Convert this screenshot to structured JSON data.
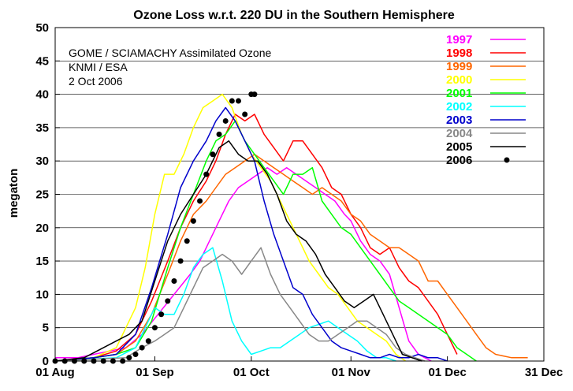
{
  "chart_data": {
    "type": "line",
    "title": "Ozone Loss w.r.t. 220 DU in the Southern Hemisphere",
    "ylabel": "megaton",
    "xlabel": "",
    "annotations": [
      "GOME / SCIAMACHY Assimilated Ozone",
      "KNMI / ESA",
      "2 Oct 2006"
    ],
    "x_unit": "day of year",
    "xlim": [
      213,
      365
    ],
    "ylim": [
      0,
      50
    ],
    "x_ticks": [
      {
        "value": 213,
        "label": "01 Aug"
      },
      {
        "value": 244,
        "label": "01 Sep"
      },
      {
        "value": 274,
        "label": "01 Oct"
      },
      {
        "value": 305,
        "label": "01 Nov"
      },
      {
        "value": 335,
        "label": "01 Dec"
      },
      {
        "value": 365,
        "label": "31 Dec"
      }
    ],
    "y_ticks": [
      0,
      5,
      10,
      15,
      20,
      25,
      30,
      35,
      40,
      45,
      50
    ],
    "grid": true,
    "legend_position": "top-right",
    "series": [
      {
        "name": "1997",
        "color": "#ff00ff",
        "style": "line",
        "x": [
          213,
          220,
          225,
          230,
          235,
          240,
          245,
          250,
          255,
          258,
          261,
          264,
          267,
          270,
          273,
          276,
          279,
          282,
          285,
          288,
          291,
          294,
          297,
          300,
          303,
          305,
          308,
          311,
          314,
          317,
          320,
          323,
          326,
          328,
          330
        ],
        "y": [
          0.5,
          0.5,
          1,
          1.5,
          2,
          4,
          7,
          10,
          13,
          15,
          18,
          21,
          24,
          26,
          27,
          28,
          29,
          28,
          29,
          28,
          27,
          26,
          25,
          24,
          22,
          21,
          18,
          16,
          15,
          13,
          8,
          3,
          1,
          0.5,
          0
        ]
      },
      {
        "name": "1998",
        "color": "#ff0000",
        "style": "line",
        "x": [
          213,
          225,
          232,
          238,
          243,
          248,
          252,
          256,
          260,
          263,
          266,
          269,
          272,
          275,
          278,
          281,
          284,
          287,
          290,
          293,
          296,
          299,
          302,
          305,
          308,
          311,
          314,
          317,
          320,
          323,
          326,
          329,
          332,
          335,
          338
        ],
        "y": [
          0,
          0.5,
          1.5,
          4,
          9,
          15,
          20,
          24,
          27,
          30,
          34,
          37,
          36,
          37,
          34,
          32,
          30,
          33,
          33,
          31,
          29,
          26,
          25,
          22,
          20,
          17,
          16,
          17,
          14,
          12,
          11,
          9,
          7,
          4,
          1
        ]
      },
      {
        "name": "1999",
        "color": "#ff6600",
        "style": "line",
        "x": [
          213,
          225,
          232,
          238,
          243,
          248,
          252,
          256,
          260,
          263,
          266,
          269,
          272,
          275,
          278,
          281,
          284,
          287,
          290,
          293,
          296,
          299,
          302,
          305,
          308,
          311,
          314,
          317,
          320,
          323,
          326,
          329,
          332,
          335,
          338,
          341,
          344,
          347,
          350,
          355,
          360
        ],
        "y": [
          0,
          0.5,
          1,
          3,
          7,
          13,
          18,
          22,
          24,
          26,
          28,
          29,
          30,
          31,
          30,
          29,
          28,
          27,
          26,
          25,
          26,
          25,
          24,
          22,
          21,
          19,
          18,
          17,
          17,
          16,
          15,
          12,
          12,
          10,
          8,
          6,
          4,
          2,
          1,
          0.5,
          0.5
        ]
      },
      {
        "name": "2000",
        "color": "#ffff00",
        "style": "line",
        "x": [
          213,
          225,
          232,
          238,
          241,
          244,
          247,
          250,
          253,
          256,
          259,
          262,
          265,
          268,
          271,
          274,
          277,
          280,
          283,
          286,
          289,
          292,
          295,
          298,
          301,
          304,
          307,
          310,
          313,
          316,
          319,
          322
        ],
        "y": [
          0,
          0.5,
          2,
          8,
          14,
          22,
          28,
          28,
          31,
          35,
          38,
          39,
          40,
          38,
          34,
          31,
          29,
          27,
          24,
          21,
          18,
          15,
          13,
          11,
          10,
          8,
          6,
          5,
          4,
          3,
          1,
          0
        ]
      },
      {
        "name": "2001",
        "color": "#00ff00",
        "style": "line",
        "x": [
          213,
          225,
          232,
          238,
          243,
          248,
          252,
          256,
          260,
          263,
          266,
          269,
          272,
          275,
          278,
          281,
          284,
          287,
          290,
          293,
          296,
          299,
          302,
          305,
          308,
          311,
          314,
          317,
          320,
          323,
          326,
          329,
          332,
          335,
          338,
          341,
          344
        ],
        "y": [
          0,
          0.5,
          1,
          2,
          6,
          14,
          20,
          25,
          30,
          33,
          34,
          36,
          33,
          31,
          29,
          27,
          25,
          28,
          28,
          29,
          24,
          22,
          20,
          19,
          17,
          15,
          13,
          11,
          9,
          8,
          7,
          6,
          5,
          4,
          2,
          1,
          0
        ]
      },
      {
        "name": "2002",
        "color": "#00ffff",
        "style": "line",
        "x": [
          213,
          232,
          238,
          242,
          244,
          247,
          250,
          253,
          256,
          259,
          262,
          265,
          268,
          271,
          274,
          277,
          280,
          283,
          286,
          289,
          292,
          295,
          298,
          301,
          304,
          307,
          310,
          313,
          316,
          319
        ],
        "y": [
          0,
          0.5,
          2,
          6,
          8,
          7,
          7,
          10,
          14,
          16,
          17,
          12,
          6,
          3,
          1,
          1.5,
          2,
          2,
          3,
          4,
          5,
          5.5,
          6,
          5,
          4,
          3,
          1.5,
          0.5,
          0.5,
          0
        ]
      },
      {
        "name": "2003",
        "color": "#0000cc",
        "style": "line",
        "x": [
          213,
          225,
          232,
          238,
          243,
          248,
          252,
          256,
          260,
          263,
          266,
          269,
          272,
          275,
          278,
          281,
          284,
          287,
          290,
          293,
          296,
          299,
          302,
          305,
          308,
          311,
          314,
          317,
          320,
          323,
          326,
          329,
          332,
          335
        ],
        "y": [
          0,
          0.5,
          1,
          4,
          11,
          19,
          26,
          30,
          33,
          36,
          38,
          36,
          33,
          30,
          24,
          19,
          15,
          11,
          10,
          7,
          5,
          3,
          2,
          1.5,
          1,
          0.5,
          0.5,
          1,
          0.5,
          0.5,
          1,
          0.5,
          0.5,
          0
        ]
      },
      {
        "name": "2004",
        "color": "#888888",
        "style": "line",
        "x": [
          213,
          235,
          240,
          244,
          247,
          250,
          253,
          256,
          259,
          262,
          265,
          268,
          271,
          274,
          277,
          280,
          283,
          286,
          289,
          292,
          295,
          298,
          301,
          304,
          307,
          310,
          313,
          316,
          319,
          322,
          325,
          328
        ],
        "y": [
          0,
          0.5,
          2,
          3,
          4,
          5,
          8,
          11,
          14,
          15,
          16,
          15,
          13,
          15,
          17,
          13,
          10,
          8,
          6,
          4,
          3,
          3,
          4,
          5,
          6,
          6,
          5,
          4,
          2,
          1,
          0.5,
          0
        ]
      },
      {
        "name": "2005",
        "color": "#000000",
        "style": "line",
        "x": [
          213,
          222,
          228,
          232,
          236,
          240,
          244,
          248,
          252,
          256,
          260,
          264,
          267,
          270,
          273,
          276,
          279,
          282,
          285,
          288,
          291,
          294,
          297,
          300,
          303,
          306,
          309,
          312,
          315,
          318,
          321,
          324,
          327
        ],
        "y": [
          0,
          0.5,
          2,
          3,
          4,
          6,
          12,
          18,
          22,
          25,
          28,
          32,
          33,
          31,
          30,
          30,
          28,
          25,
          21,
          19,
          18,
          16,
          13,
          11,
          9,
          8,
          9,
          10,
          7,
          4,
          1,
          0.5,
          0
        ]
      },
      {
        "name": "2006",
        "color": "#000000",
        "style": "dots",
        "x": [
          213,
          216,
          219,
          222,
          225,
          228,
          231,
          234,
          236,
          238,
          240,
          242,
          244,
          246,
          248,
          250,
          252,
          254,
          256,
          258,
          260,
          262,
          264,
          266,
          268,
          270,
          272,
          274,
          275
        ],
        "y": [
          0,
          0,
          0,
          0,
          0,
          0,
          0,
          0,
          0.5,
          1,
          2,
          3,
          5,
          7,
          9,
          12,
          15,
          18,
          21,
          24,
          28,
          31,
          34,
          36,
          39,
          39,
          37,
          40,
          40
        ]
      }
    ]
  }
}
